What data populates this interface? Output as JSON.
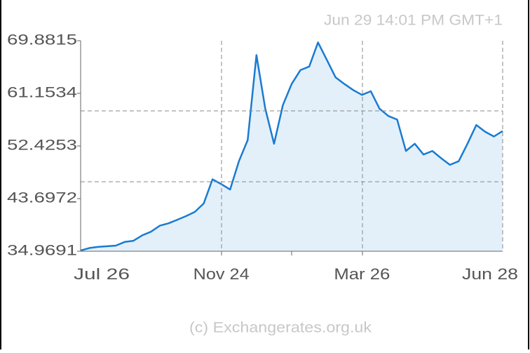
{
  "chart_data": {
    "type": "area",
    "timestamp": "Jun 29  14:01 PM GMT+1",
    "footer": "(c) Exchangerates.org.uk",
    "categories": [
      "Jul 26",
      null,
      null,
      null,
      null,
      null,
      null,
      null,
      null,
      null,
      null,
      null,
      null,
      null,
      null,
      null,
      "Nov 24",
      null,
      null,
      null,
      null,
      null,
      null,
      null,
      null,
      null,
      null,
      null,
      null,
      null,
      null,
      null,
      "Mar 26",
      null,
      null,
      null,
      null,
      null,
      null,
      null,
      null,
      null,
      null,
      null,
      null,
      null,
      null,
      null,
      "Jun 28"
    ],
    "values": [
      35.1,
      35.5,
      35.7,
      35.8,
      35.9,
      36.5,
      36.7,
      37.6,
      38.2,
      39.2,
      39.6,
      40.2,
      40.8,
      41.5,
      42.9,
      46.9,
      46.1,
      45.2,
      49.9,
      53.4,
      67.5,
      58.6,
      52.8,
      59.2,
      62.7,
      65.0,
      65.6,
      69.6,
      66.7,
      63.8,
      62.7,
      61.7,
      60.9,
      61.5,
      58.6,
      57.4,
      56.8,
      51.6,
      52.8,
      51.0,
      51.6,
      50.4,
      49.3,
      49.9,
      52.8,
      55.9,
      54.8,
      54.0,
      54.9
    ],
    "color": "#1a7bd1",
    "fill": "#e3f0fa",
    "ylim": [
      34.9691,
      69.8815
    ],
    "yticks": [
      34.9691,
      43.6972,
      52.4253,
      61.1534,
      69.8815
    ]
  }
}
